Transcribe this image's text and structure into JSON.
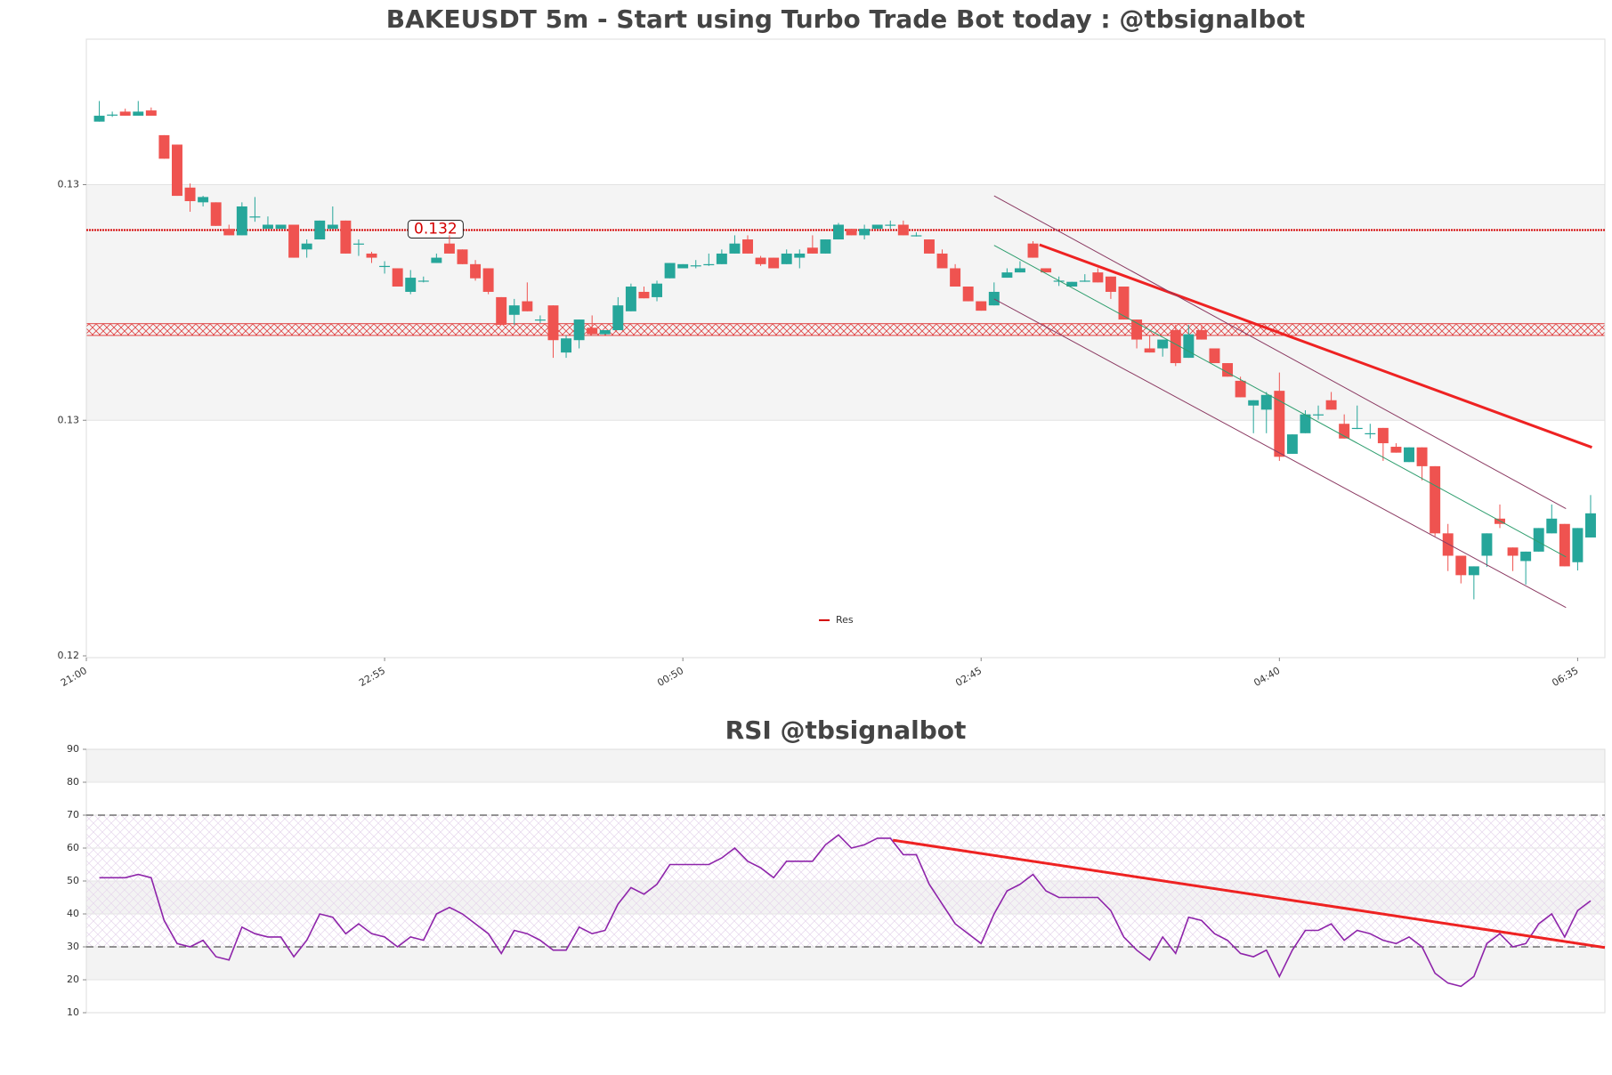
{
  "chart_data": [
    {
      "type": "candlestick",
      "title": "BAKEUSDT 5m - Start using Turbo Trade Bot today : @tbsignalbot",
      "x": [
        1,
        2,
        3,
        4,
        5,
        6,
        7,
        8,
        9,
        10,
        11,
        12,
        13,
        14,
        15,
        16,
        17,
        18,
        19,
        20,
        21,
        22,
        23,
        24,
        25,
        26,
        27,
        28,
        29,
        30,
        31,
        32,
        33,
        34,
        35,
        36,
        37,
        38,
        39,
        40,
        41,
        42,
        43,
        44,
        45,
        46,
        47,
        48,
        49,
        50,
        51,
        52,
        53,
        54,
        55,
        56,
        57,
        58,
        59,
        60,
        61,
        62,
        63,
        64,
        65,
        66,
        67,
        68,
        69,
        70,
        71,
        72,
        73,
        74,
        75,
        76,
        77,
        78,
        79,
        80,
        81,
        82,
        83,
        84,
        85,
        86,
        87,
        88,
        89,
        90,
        91,
        92,
        93,
        94,
        95,
        96,
        97,
        98,
        99,
        100,
        101,
        102,
        103,
        104,
        105,
        106,
        107,
        108,
        109,
        110,
        111,
        112,
        113,
        114,
        115,
        116
      ],
      "open": [
        0.13407,
        0.13419,
        0.13424,
        0.13417,
        0.13426,
        0.13384,
        0.13368,
        0.13295,
        0.1327,
        0.1327,
        0.13225,
        0.13214,
        0.13246,
        0.13225,
        0.13225,
        0.13232,
        0.1319,
        0.13207,
        0.13225,
        0.13239,
        0.132,
        0.13183,
        0.13162,
        0.13158,
        0.13118,
        0.13137,
        0.13167,
        0.132,
        0.1319,
        0.13165,
        0.13158,
        0.13109,
        0.13079,
        0.13102,
        0.13071,
        0.13095,
        0.13015,
        0.13036,
        0.13057,
        0.13046,
        0.13053,
        0.13085,
        0.13118,
        0.13109,
        0.13141,
        0.13158,
        0.13163,
        0.13165,
        0.13165,
        0.13183,
        0.13207,
        0.13176,
        0.13176,
        0.13165,
        0.13176,
        0.13193,
        0.13183,
        0.13207,
        0.13225,
        0.13214,
        0.13225,
        0.13232,
        0.13232,
        0.13214,
        0.13207,
        0.13183,
        0.13158,
        0.13127,
        0.13102,
        0.13095,
        0.13142,
        0.13151,
        0.132,
        0.13158,
        0.13137,
        0.13127,
        0.13137,
        0.13151,
        0.13144,
        0.13127,
        0.13071,
        0.13022,
        0.13022,
        0.13053,
        0.13006,
        0.13053,
        0.13022,
        0.12997,
        0.12967,
        0.12925,
        0.12918,
        0.1295,
        0.12843,
        0.12878,
        0.1291,
        0.12934,
        0.12894,
        0.12887,
        0.12878,
        0.12887,
        0.12855,
        0.12829,
        0.12854,
        0.12822,
        0.12708,
        0.1267,
        0.12637,
        0.1267,
        0.12733,
        0.12684,
        0.12661,
        0.12677,
        0.12708,
        0.12724,
        0.12659,
        0.12701
      ],
      "high": [
        0.13442,
        0.13424,
        0.13429,
        0.13442,
        0.13431,
        0.13384,
        0.13368,
        0.13302,
        0.13281,
        0.1327,
        0.13232,
        0.1327,
        0.13279,
        0.13246,
        0.13232,
        0.13232,
        0.13207,
        0.13239,
        0.13263,
        0.13239,
        0.13207,
        0.13186,
        0.1317,
        0.13158,
        0.13155,
        0.13144,
        0.13183,
        0.13214,
        0.1319,
        0.13172,
        0.13158,
        0.13109,
        0.13106,
        0.13134,
        0.13078,
        0.13095,
        0.13044,
        0.13071,
        0.13078,
        0.13053,
        0.13109,
        0.13132,
        0.13127,
        0.13137,
        0.13167,
        0.13165,
        0.13172,
        0.13183,
        0.1319,
        0.13214,
        0.13214,
        0.13179,
        0.13176,
        0.1319,
        0.1319,
        0.13214,
        0.13207,
        0.13235,
        0.13225,
        0.13232,
        0.13232,
        0.13239,
        0.13239,
        0.13219,
        0.13207,
        0.1319,
        0.13165,
        0.13127,
        0.13102,
        0.13134,
        0.13158,
        0.1317,
        0.13204,
        0.13158,
        0.13144,
        0.13135,
        0.13148,
        0.13158,
        0.13144,
        0.13127,
        0.13071,
        0.13044,
        0.13037,
        0.13062,
        0.13062,
        0.13062,
        0.13022,
        0.12997,
        0.12974,
        0.12934,
        0.12948,
        0.12981,
        0.12876,
        0.12917,
        0.12925,
        0.12948,
        0.1291,
        0.12925,
        0.12894,
        0.12887,
        0.12861,
        0.12854,
        0.12854,
        0.12822,
        0.12724,
        0.1267,
        0.12652,
        0.12708,
        0.12757,
        0.12684,
        0.12677,
        0.12717,
        0.12757,
        0.12724,
        0.12717,
        0.12773
      ],
      "low": [
        0.13407,
        0.13415,
        0.13417,
        0.13417,
        0.13417,
        0.13344,
        0.13281,
        0.13254,
        0.13263,
        0.1323,
        0.13214,
        0.13214,
        0.13237,
        0.13225,
        0.13225,
        0.13176,
        0.13176,
        0.13207,
        0.13225,
        0.13183,
        0.13179,
        0.13167,
        0.13149,
        0.13127,
        0.13114,
        0.13134,
        0.13167,
        0.13183,
        0.13165,
        0.13137,
        0.13114,
        0.13062,
        0.13062,
        0.13085,
        0.13065,
        0.13006,
        0.13006,
        0.13022,
        0.13046,
        0.13046,
        0.13053,
        0.13085,
        0.13107,
        0.13102,
        0.13141,
        0.13158,
        0.13158,
        0.13162,
        0.13165,
        0.13183,
        0.13183,
        0.13162,
        0.13158,
        0.13165,
        0.13158,
        0.13183,
        0.13183,
        0.13207,
        0.13214,
        0.13207,
        0.13225,
        0.13225,
        0.13214,
        0.13212,
        0.13183,
        0.13158,
        0.13127,
        0.13102,
        0.13086,
        0.13095,
        0.13142,
        0.13151,
        0.13176,
        0.13151,
        0.13128,
        0.13127,
        0.13135,
        0.13134,
        0.13106,
        0.13071,
        0.13022,
        0.13015,
        0.13008,
        0.12992,
        0.13006,
        0.13037,
        0.12997,
        0.12974,
        0.12939,
        0.12878,
        0.12878,
        0.12831,
        0.12843,
        0.12878,
        0.12901,
        0.12918,
        0.12869,
        0.12885,
        0.12869,
        0.12831,
        0.12845,
        0.12829,
        0.12798,
        0.12703,
        0.12644,
        0.12623,
        0.12596,
        0.12651,
        0.12717,
        0.12644,
        0.12621,
        0.12677,
        0.12708,
        0.12652,
        0.12645,
        0.12701
      ],
      "close": [
        0.13417,
        0.13419,
        0.13417,
        0.13424,
        0.13417,
        0.13344,
        0.13281,
        0.13272,
        0.13279,
        0.1323,
        0.13214,
        0.13263,
        0.13246,
        0.13232,
        0.13232,
        0.13176,
        0.132,
        0.13239,
        0.13232,
        0.13183,
        0.132,
        0.13176,
        0.13162,
        0.13127,
        0.13142,
        0.13137,
        0.13176,
        0.13183,
        0.13165,
        0.13141,
        0.13118,
        0.13062,
        0.13095,
        0.13085,
        0.13071,
        0.13036,
        0.13039,
        0.13071,
        0.13046,
        0.13053,
        0.13095,
        0.13127,
        0.13107,
        0.13132,
        0.13167,
        0.13165,
        0.13163,
        0.13165,
        0.13183,
        0.132,
        0.13183,
        0.13165,
        0.13158,
        0.13183,
        0.13183,
        0.13183,
        0.13207,
        0.13232,
        0.13214,
        0.13225,
        0.13232,
        0.13232,
        0.13214,
        0.13214,
        0.13183,
        0.13158,
        0.13127,
        0.13102,
        0.13086,
        0.13118,
        0.13151,
        0.13158,
        0.13176,
        0.13151,
        0.13137,
        0.13135,
        0.13137,
        0.13134,
        0.13118,
        0.13071,
        0.13037,
        0.13015,
        0.13037,
        0.12997,
        0.13046,
        0.13037,
        0.12997,
        0.12974,
        0.12939,
        0.12934,
        0.12943,
        0.12838,
        0.12876,
        0.1291,
        0.1291,
        0.12918,
        0.12869,
        0.12887,
        0.12878,
        0.12861,
        0.12845,
        0.12854,
        0.12822,
        0.12708,
        0.1267,
        0.12637,
        0.12652,
        0.12708,
        0.12724,
        0.1267,
        0.12677,
        0.12717,
        0.12733,
        0.12652,
        0.12717,
        0.12742
      ],
      "up_color": "#26a69a",
      "down_color": "#ef5350",
      "xlim": [
        0,
        117.1
      ],
      "xticks": [
        {
          "value": 0,
          "label": "21:00"
        },
        {
          "value": 23,
          "label": "22:55"
        },
        {
          "value": 46,
          "label": "00:50"
        },
        {
          "value": 69,
          "label": "02:45"
        },
        {
          "value": 92,
          "label": "04:40"
        },
        {
          "value": 115,
          "label": "06:35"
        }
      ],
      "ylim": [
        0.12497,
        0.13547
      ],
      "yticks": [
        {
          "value": 0.133,
          "label": "0.13"
        },
        {
          "value": 0.129,
          "label": "0.13"
        },
        {
          "value": 0.125,
          "label": "0.12"
        }
      ],
      "band": [
        0.129,
        0.133
      ],
      "hatch_band": [
        0.13044,
        0.13064
      ],
      "lines": [
        {
          "name": "Res",
          "value": 0.13223,
          "label": "0.132",
          "color": "#d40000"
        }
      ],
      "trendlines": [
        {
          "x": [
            73.5,
            116.1
          ],
          "values": [
            0.13198,
            0.12854
          ],
          "color": "#ee2222",
          "width": 3
        },
        {
          "x": [
            70,
            114.1
          ],
          "values": [
            0.13281,
            0.1275
          ],
          "color": "#8b3a62",
          "width": 1
        },
        {
          "x": [
            70,
            114.1
          ],
          "values": [
            0.13197,
            0.12668
          ],
          "color": "#2e9e6e",
          "width": 1
        },
        {
          "x": [
            70,
            114.1
          ],
          "values": [
            0.13106,
            0.12582
          ],
          "color": "#8b3a62",
          "width": 1
        }
      ],
      "legend": "lower center"
    },
    {
      "type": "line",
      "title": "RSI @tbsignalbot",
      "x": [
        1,
        2,
        3,
        4,
        5,
        6,
        7,
        8,
        9,
        10,
        11,
        12,
        13,
        14,
        15,
        16,
        17,
        18,
        19,
        20,
        21,
        22,
        23,
        24,
        25,
        26,
        27,
        28,
        29,
        30,
        31,
        32,
        33,
        34,
        35,
        36,
        37,
        38,
        39,
        40,
        41,
        42,
        43,
        44,
        45,
        46,
        47,
        48,
        49,
        50,
        51,
        52,
        53,
        54,
        55,
        56,
        57,
        58,
        59,
        60,
        61,
        62,
        63,
        64,
        65,
        66,
        67,
        68,
        69,
        70,
        71,
        72,
        73,
        74,
        75,
        76,
        77,
        78,
        79,
        80,
        81,
        82,
        83,
        84,
        85,
        86,
        87,
        88,
        89,
        90,
        91,
        92,
        93,
        94,
        95,
        96,
        97,
        98,
        99,
        100,
        101,
        102,
        103,
        104,
        105,
        106,
        107,
        108,
        109,
        110,
        111,
        112,
        113,
        114,
        115,
        116
      ],
      "values": [
        51,
        51,
        51,
        52,
        51,
        38,
        31,
        30,
        32,
        27,
        26,
        36,
        34,
        33,
        33,
        27,
        32,
        40,
        39,
        34,
        37,
        34,
        33,
        30,
        33,
        32,
        40,
        42,
        40,
        37,
        34,
        28,
        35,
        34,
        32,
        29,
        29,
        36,
        34,
        35,
        43,
        48,
        46,
        49,
        55,
        55,
        55,
        55,
        57,
        60,
        56,
        54,
        51,
        56,
        56,
        56,
        61,
        64,
        60,
        61,
        63,
        63,
        58,
        58,
        49,
        43,
        37,
        34,
        31,
        40,
        47,
        49,
        52,
        47,
        45,
        45,
        45,
        45,
        41,
        33,
        29,
        26,
        33,
        28,
        39,
        38,
        34,
        32,
        28,
        27,
        29,
        21,
        29,
        35,
        35,
        37,
        32,
        35,
        34,
        32,
        31,
        33,
        30,
        22,
        19,
        18,
        21,
        31,
        34,
        30,
        31,
        37,
        40,
        33,
        41,
        44
      ],
      "color": "#8e24aa",
      "xlim": [
        0,
        117.1
      ],
      "ylim": [
        10,
        90
      ],
      "yticks": [
        10,
        20,
        30,
        40,
        50,
        60,
        70,
        80,
        90
      ],
      "shade_bands": [
        [
          80,
          90
        ],
        [
          40,
          50
        ],
        [
          20,
          30
        ]
      ],
      "hatch_band": [
        30,
        70
      ],
      "levels": [
        70,
        30
      ],
      "trendlines": [
        {
          "x": [
            62.2,
            117.1
          ],
          "values": [
            62.4,
            29.8
          ],
          "color": "#ee2222",
          "width": 3
        }
      ]
    }
  ]
}
